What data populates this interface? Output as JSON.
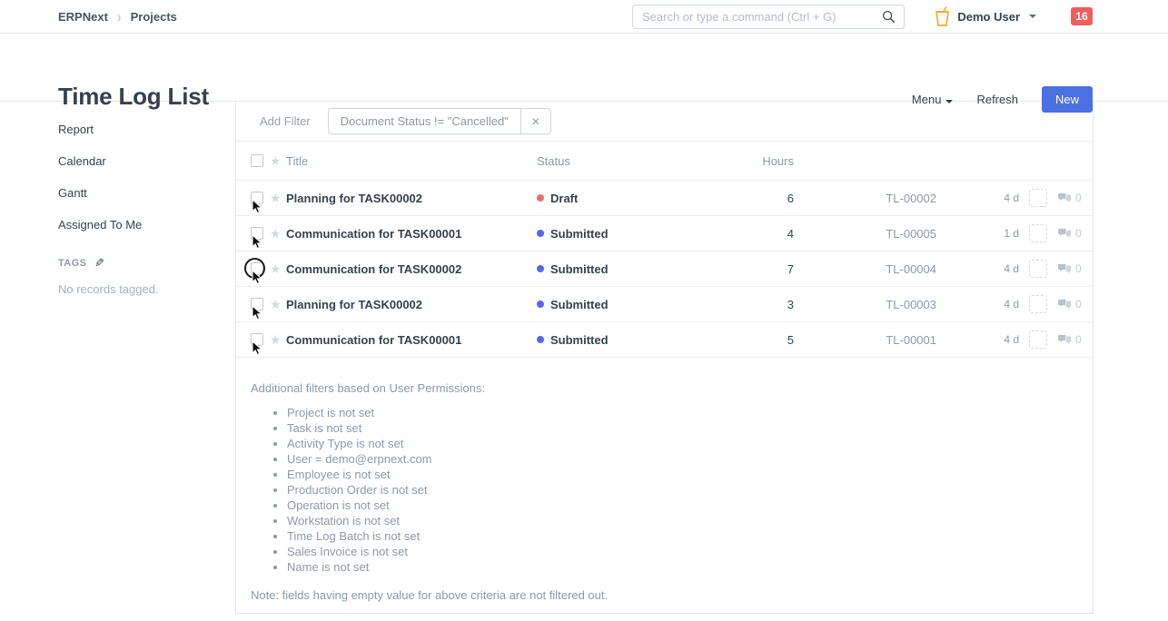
{
  "navbar": {
    "brand": "ERPNext",
    "breadcrumb": "Projects",
    "search_placeholder": "Search or type a command (Ctrl + G)",
    "user_name": "Demo User",
    "notification_count": "16"
  },
  "header": {
    "title": "Time Log List",
    "menu_label": "Menu",
    "refresh_label": "Refresh",
    "new_label": "New"
  },
  "sidebar": {
    "items": [
      {
        "name": "report",
        "label": "Report"
      },
      {
        "name": "calendar",
        "label": "Calendar"
      },
      {
        "name": "gantt",
        "label": "Gantt"
      },
      {
        "name": "assigned-to-me",
        "label": "Assigned To Me"
      }
    ],
    "tags_label": "TAGS",
    "tags_empty": "No records tagged."
  },
  "filters": {
    "add_filter_label": "Add Filter",
    "active_filter": "Document Status != \"Cancelled\"",
    "remove_label": "✕"
  },
  "table": {
    "columns": {
      "title": "Title",
      "status": "Status",
      "hours": "Hours"
    },
    "star_glyph": "★",
    "rows": [
      {
        "title": "Planning for TASK00002",
        "status": "Draft",
        "status_color": "#ee6e6e",
        "hours": "6",
        "id": "TL-00002",
        "modified": "4 d",
        "comments": "0",
        "clicked": false
      },
      {
        "title": "Communication for TASK00001",
        "status": "Submitted",
        "status_color": "#5a63ee",
        "hours": "4",
        "id": "TL-00005",
        "modified": "1 d",
        "comments": "0",
        "clicked": false
      },
      {
        "title": "Communication for TASK00002",
        "status": "Submitted",
        "status_color": "#5a63ee",
        "hours": "7",
        "id": "TL-00004",
        "modified": "4 d",
        "comments": "0",
        "clicked": true
      },
      {
        "title": "Planning for TASK00002",
        "status": "Submitted",
        "status_color": "#5a63ee",
        "hours": "3",
        "id": "TL-00003",
        "modified": "4 d",
        "comments": "0",
        "clicked": false
      },
      {
        "title": "Communication for TASK00001",
        "status": "Submitted",
        "status_color": "#5a63ee",
        "hours": "5",
        "id": "TL-00001",
        "modified": "4 d",
        "comments": "0",
        "clicked": false
      }
    ]
  },
  "permissions_note": {
    "heading": "Additional filters based on User Permissions:",
    "items": [
      "Project is not set",
      "Task is not set",
      "Activity Type is not set",
      "User = demo@erpnext.com",
      "Employee is not set",
      "Production Order is not set",
      "Operation is not set",
      "Workstation is not set",
      "Time Log Batch is not set",
      "Sales Invoice is not set",
      "Name is not set"
    ],
    "note": "Note: fields having empty value for above criteria are not filtered out."
  },
  "colors": {
    "accent_blue": "#4c6fe2",
    "badge_red": "#f05d5d",
    "draft_red": "#ee6e6e",
    "submitted_blue": "#5a63ee",
    "avatar_orange": "#f6a835"
  }
}
